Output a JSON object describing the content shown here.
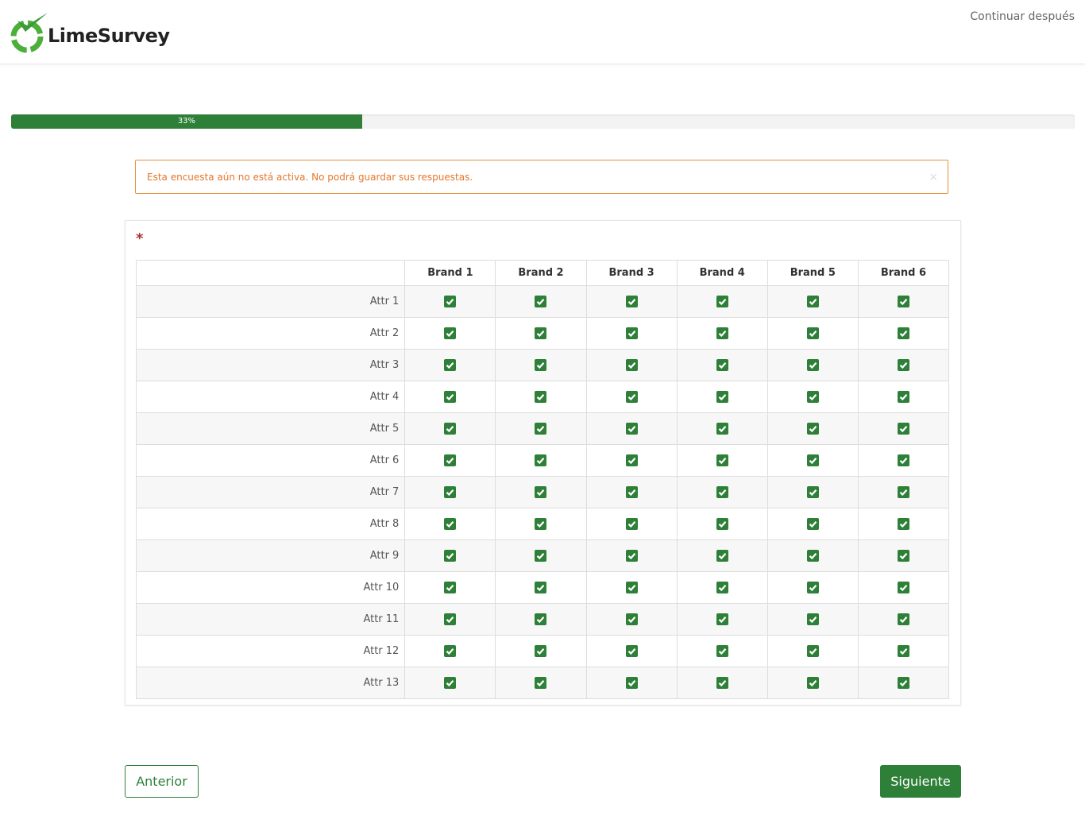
{
  "header": {
    "brand": "LimeSurvey",
    "save_later": "Continuar después"
  },
  "progress": {
    "value": 33,
    "label": "33%"
  },
  "alert": {
    "text": "Esta encuesta aún no está activa. No podrá guardar sus respuestas.",
    "close": "×"
  },
  "question": {
    "mandatory_mark": "*"
  },
  "table": {
    "columns": [
      "Brand 1",
      "Brand 2",
      "Brand 3",
      "Brand 4",
      "Brand 5",
      "Brand 6"
    ],
    "rows": [
      {
        "label": "Attr 1",
        "checked": [
          true,
          true,
          true,
          true,
          true,
          true
        ]
      },
      {
        "label": "Attr 2",
        "checked": [
          true,
          true,
          true,
          true,
          true,
          true
        ]
      },
      {
        "label": "Attr 3",
        "checked": [
          true,
          true,
          true,
          true,
          true,
          true
        ]
      },
      {
        "label": "Attr 4",
        "checked": [
          true,
          true,
          true,
          true,
          true,
          true
        ]
      },
      {
        "label": "Attr 5",
        "checked": [
          true,
          true,
          true,
          true,
          true,
          true
        ]
      },
      {
        "label": "Attr 6",
        "checked": [
          true,
          true,
          true,
          true,
          true,
          true
        ]
      },
      {
        "label": "Attr 7",
        "checked": [
          true,
          true,
          true,
          true,
          true,
          true
        ]
      },
      {
        "label": "Attr 8",
        "checked": [
          true,
          true,
          true,
          true,
          true,
          true
        ]
      },
      {
        "label": "Attr 9",
        "checked": [
          true,
          true,
          true,
          true,
          true,
          true
        ]
      },
      {
        "label": "Attr 10",
        "checked": [
          true,
          true,
          true,
          true,
          true,
          true
        ]
      },
      {
        "label": "Attr 11",
        "checked": [
          true,
          true,
          true,
          true,
          true,
          true
        ]
      },
      {
        "label": "Attr 12",
        "checked": [
          true,
          true,
          true,
          true,
          true,
          true
        ]
      },
      {
        "label": "Attr 13",
        "checked": [
          true,
          true,
          true,
          true,
          true,
          true
        ]
      }
    ]
  },
  "nav": {
    "previous": "Anterior",
    "next": "Siguiente"
  }
}
